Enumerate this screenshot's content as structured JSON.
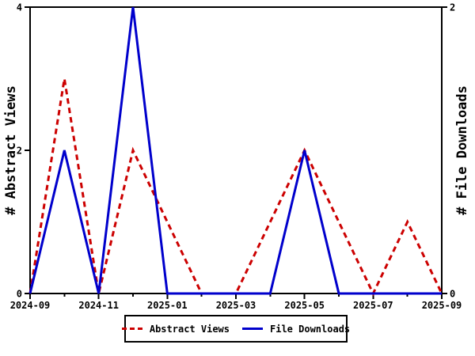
{
  "chart_data": {
    "type": "line",
    "title": "",
    "x": [
      "2024-09",
      "2024-10",
      "2024-11",
      "2024-12",
      "2025-01",
      "2025-02",
      "2025-03",
      "2025-04",
      "2025-05",
      "2025-06",
      "2025-07",
      "2025-08",
      "2025-09"
    ],
    "x_tick_labels": [
      "2024-09",
      "2024-11",
      "2025-01",
      "2025-03",
      "2025-05",
      "2025-07",
      "2025-09"
    ],
    "series": [
      {
        "name": "Abstract Views",
        "axis": "left",
        "color": "#cc0000",
        "line_style": "dashed",
        "values": [
          0,
          3,
          0,
          2,
          1,
          0,
          0,
          1,
          2,
          1,
          0,
          1,
          0
        ]
      },
      {
        "name": "File Downloads",
        "axis": "right",
        "color": "#0000cc",
        "line_style": "solid",
        "values": [
          0,
          1,
          0,
          2,
          0,
          0,
          0,
          0,
          1,
          0,
          0,
          0,
          0
        ]
      }
    ],
    "left_axis": {
      "label": "# Abstract Views",
      "min": 0,
      "max": 4,
      "ticks": [
        0,
        2,
        4
      ]
    },
    "right_axis": {
      "label": "# File Downloads",
      "min": 0,
      "max": 2,
      "ticks": [
        0,
        2
      ]
    },
    "grid": false,
    "legend_position": "bottom",
    "axis_color": "#000000",
    "background_color": "#ffffff"
  },
  "legend": {
    "items": [
      {
        "label": "Abstract Views"
      },
      {
        "label": "File Downloads"
      }
    ]
  }
}
